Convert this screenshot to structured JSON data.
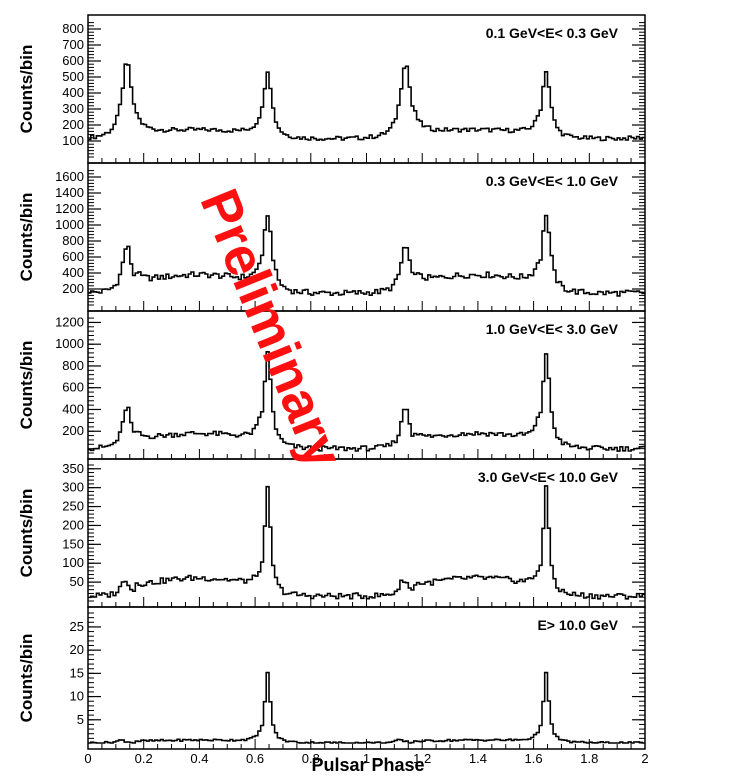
{
  "chart_data": {
    "type": "line",
    "x_label": "Pulsar Phase",
    "x_range": [
      0,
      2
    ],
    "x_ticks": [
      "0",
      "0.2",
      "0.4",
      "0.6",
      "0.8",
      "1",
      "1.2",
      "1.4",
      "1.6",
      "1.8",
      "2"
    ],
    "watermark": "Preliminary",
    "panels": [
      {
        "title": "0.1 GeV<E< 0.3 GeV",
        "ylabel": "Counts/bin",
        "ylim": [
          0,
          850
        ],
        "yticks": [
          100,
          200,
          300,
          400,
          500,
          600,
          700,
          800
        ],
        "baseline": 110,
        "bridge": 55,
        "p1": {
          "center": 0.14,
          "height": 480,
          "width": 0.022
        },
        "p2": {
          "center": 0.645,
          "height": 430,
          "width": 0.018
        },
        "y_start": 100,
        "y_end": 90
      },
      {
        "title": "0.3 GeV<E< 1.0 GeV",
        "ylabel": "Counts/bin",
        "ylim": [
          0,
          1700
        ],
        "yticks": [
          200,
          400,
          600,
          800,
          1000,
          1200,
          1400,
          1600
        ],
        "baseline": 140,
        "bridge": 230,
        "p1": {
          "center": 0.14,
          "height": 600,
          "width": 0.02
        },
        "p2": {
          "center": 0.645,
          "height": 1000,
          "width": 0.018
        },
        "y_start": 150,
        "y_end": 110
      },
      {
        "title": "1.0 GeV<E< 3.0 GeV",
        "ylabel": "Counts/bin",
        "ylim": [
          0,
          1250
        ],
        "yticks": [
          200,
          400,
          600,
          800,
          1000,
          1200
        ],
        "baseline": 35,
        "bridge": 140,
        "p1": {
          "center": 0.14,
          "height": 400,
          "width": 0.018
        },
        "p2": {
          "center": 0.645,
          "height": 880,
          "width": 0.016
        },
        "y_start": 30,
        "y_end": 25
      },
      {
        "title": "3.0 GeV<E< 10.0 GeV",
        "ylabel": "Counts/bin",
        "ylim": [
          0,
          360
        ],
        "yticks": [
          50,
          100,
          150,
          200,
          250,
          300,
          350
        ],
        "baseline": 12,
        "bridge": 48,
        "p1": {
          "center": 0.135,
          "height": 45,
          "width": 0.02
        },
        "p2": {
          "center": 0.645,
          "height": 285,
          "width": 0.013
        },
        "y_start": 5,
        "y_end": 5
      },
      {
        "title": "E> 10.0 GeV",
        "ylabel": "Counts/bin",
        "ylim": [
          0,
          28
        ],
        "yticks": [
          5,
          10,
          15,
          20,
          25
        ],
        "baseline": 0,
        "bridge": 0.6,
        "p1": {
          "center": 0.12,
          "height": 0.6,
          "width": 0.02
        },
        "p2": {
          "center": 0.645,
          "height": 15,
          "width": 0.012
        },
        "y_start": 0,
        "y_end": 0
      }
    ]
  }
}
